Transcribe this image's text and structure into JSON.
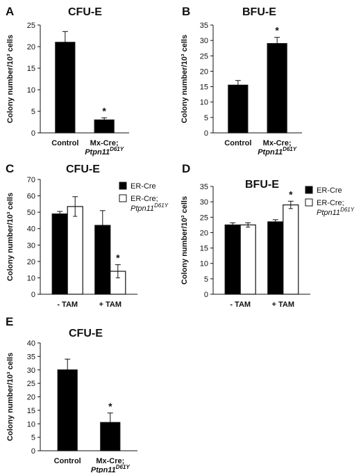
{
  "chart_data": [
    {
      "panel": "A",
      "type": "bar",
      "title": "CFU-E",
      "ylabel": "Colony number/10³ cells",
      "ylim": [
        0,
        25
      ],
      "yticks": [
        "0",
        "5",
        "10",
        "15",
        "20",
        "25"
      ],
      "categories": [
        {
          "line1": "Control",
          "line2": "",
          "italic_tail": "",
          "sup": ""
        },
        {
          "line1": "Mx-Cre;",
          "line2": "Ptpn11",
          "italic_tail": "",
          "sup": "D61Y"
        }
      ],
      "series": [
        {
          "values": [
            21,
            3
          ],
          "errors": [
            2.5,
            0.5
          ],
          "fill": "#000000"
        }
      ],
      "annotations": [
        {
          "category": 1,
          "text": "*"
        }
      ]
    },
    {
      "panel": "B",
      "type": "bar",
      "title": "BFU-E",
      "ylabel": "Colony number/10³ cells",
      "ylim": [
        0,
        35
      ],
      "yticks": [
        "0",
        "5",
        "10",
        "15",
        "20",
        "25",
        "30",
        "35"
      ],
      "categories": [
        {
          "line1": "Control",
          "line2": "",
          "sup": ""
        },
        {
          "line1": "Mx-Cre;",
          "line2": "Ptpn11",
          "sup": "D61Y"
        }
      ],
      "series": [
        {
          "values": [
            15.5,
            29
          ],
          "errors": [
            1.5,
            2
          ],
          "fill": "#000000"
        }
      ],
      "annotations": [
        {
          "category": 1,
          "text": "*"
        }
      ]
    },
    {
      "panel": "C",
      "type": "bar",
      "title": "CFU-E",
      "ylabel": "Colony number/10³ cells",
      "ylim": [
        0,
        70
      ],
      "yticks": [
        "0",
        "10",
        "20",
        "30",
        "40",
        "50",
        "60",
        "70"
      ],
      "categories": [
        {
          "line1": "- TAM",
          "line2": "",
          "sup": ""
        },
        {
          "line1": "+ TAM",
          "line2": "",
          "sup": ""
        }
      ],
      "series": [
        {
          "name": "ER-Cre",
          "values": [
            49,
            42
          ],
          "errors": [
            1.5,
            9
          ],
          "fill": "#000000"
        },
        {
          "name": "ER-Cre;",
          "name_line2": "Ptpn11",
          "name_sup": "D61Y",
          "values": [
            53.5,
            14
          ],
          "errors": [
            6,
            4
          ],
          "fill": "#ffffff"
        }
      ],
      "annotations": [
        {
          "category": 1,
          "series": 1,
          "text": "*"
        }
      ]
    },
    {
      "panel": "D",
      "type": "bar",
      "title": "BFU-E",
      "ylabel": "Colony number/10³ cells",
      "ylim": [
        0,
        35
      ],
      "yticks": [
        "0",
        "5",
        "10",
        "15",
        "20",
        "25",
        "30",
        "35"
      ],
      "categories": [
        {
          "line1": "- TAM",
          "line2": "",
          "sup": ""
        },
        {
          "line1": "+ TAM",
          "line2": "",
          "sup": ""
        }
      ],
      "series": [
        {
          "name": "ER-Cre",
          "values": [
            22.5,
            23.5
          ],
          "errors": [
            0.7,
            0.7
          ],
          "fill": "#000000"
        },
        {
          "name": "ER-Cre;",
          "name_line2": "Ptpn11",
          "name_sup": "D61Y",
          "values": [
            22.5,
            29
          ],
          "errors": [
            0.7,
            1.2
          ],
          "fill": "#ffffff"
        }
      ],
      "annotations": [
        {
          "category": 1,
          "series": 1,
          "text": "*"
        }
      ]
    },
    {
      "panel": "E",
      "type": "bar",
      "title": "CFU-E",
      "ylabel": "Colony number/10³ cells",
      "ylim": [
        0,
        40
      ],
      "yticks": [
        "0",
        "5",
        "10",
        "15",
        "20",
        "25",
        "30",
        "35",
        "40"
      ],
      "categories": [
        {
          "line1": "Control",
          "line2": "",
          "sup": ""
        },
        {
          "line1": "Mx-Cre;",
          "line2": "Ptpn11",
          "sup": "D61Y"
        }
      ],
      "series": [
        {
          "values": [
            30,
            10.5
          ],
          "errors": [
            4,
            3.5
          ],
          "fill": "#000000"
        }
      ],
      "annotations": [
        {
          "category": 1,
          "text": "*"
        }
      ]
    }
  ]
}
